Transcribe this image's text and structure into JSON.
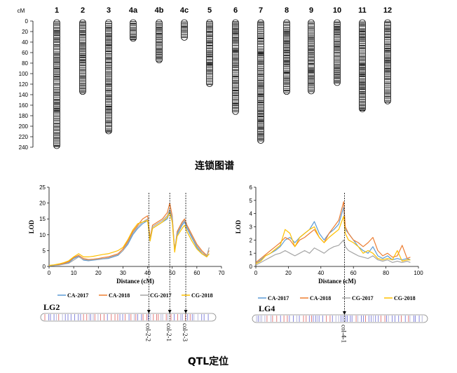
{
  "linkage_map": {
    "unit": "cM",
    "yticks": [
      0,
      20,
      40,
      60,
      80,
      100,
      120,
      140,
      160,
      180,
      200,
      220,
      240
    ],
    "chromosomes": [
      {
        "label": "1",
        "length": 240
      },
      {
        "label": "2",
        "length": 137
      },
      {
        "label": "3",
        "length": 212
      },
      {
        "label": "4a",
        "length": 36
      },
      {
        "label": "4b",
        "length": 77
      },
      {
        "label": "4c",
        "length": 34
      },
      {
        "label": "5",
        "length": 122
      },
      {
        "label": "6",
        "length": 175
      },
      {
        "label": "7",
        "length": 230
      },
      {
        "label": "8",
        "length": 137
      },
      {
        "label": "9",
        "length": 136
      },
      {
        "label": "10",
        "length": 120
      },
      {
        "label": "11",
        "length": 170
      },
      {
        "label": "12",
        "length": 155
      }
    ],
    "caption": "连锁图谱"
  },
  "series_styles": [
    {
      "name": "CA-2017",
      "color": "#5b9bd5"
    },
    {
      "name": "CA-2018",
      "color": "#ed7d31"
    },
    {
      "name": "CG-2017",
      "color": "#a5a5a5"
    },
    {
      "name": "CG-2018",
      "color": "#ffc000"
    }
  ],
  "chart_data": [
    {
      "type": "line",
      "xlabel": "Distance (cM)",
      "ylabel": "LOD",
      "xlim": [
        0,
        70
      ],
      "ylim": [
        0,
        25
      ],
      "xticks": [
        0,
        10,
        20,
        30,
        40,
        50,
        60,
        70
      ],
      "yticks": [
        0,
        5,
        10,
        15,
        20,
        25
      ],
      "legend": "bottom",
      "linkage_group": "LG2",
      "qtl": [
        {
          "name": "col-2-2",
          "pos": 40.5
        },
        {
          "name": "col-2-1",
          "pos": 49
        },
        {
          "name": "col-2-3",
          "pos": 55.5
        }
      ],
      "x": [
        0,
        2,
        4,
        6,
        8,
        10,
        12,
        14,
        16,
        18,
        20,
        22,
        24,
        26,
        28,
        30,
        32,
        34,
        36,
        38,
        40,
        41,
        42,
        44,
        46,
        48,
        49,
        50,
        51,
        52,
        54,
        55,
        56,
        58,
        60,
        62,
        64,
        65
      ],
      "series": [
        {
          "name": "CA-2017",
          "values": [
            0.2,
            0.3,
            0.5,
            0.8,
            1.2,
            2.5,
            3.2,
            2.0,
            1.8,
            2.0,
            2.2,
            2.4,
            2.5,
            3.0,
            3.5,
            5.0,
            7.0,
            10.0,
            12.0,
            13.5,
            14.5,
            8.0,
            12.0,
            13.0,
            14.0,
            15.0,
            17.5,
            15.0,
            5.0,
            10.0,
            13.0,
            14.0,
            12.0,
            9.0,
            6.0,
            4.0,
            3.0,
            4.0
          ]
        },
        {
          "name": "CA-2018",
          "values": [
            0.3,
            0.4,
            0.6,
            1.0,
            1.5,
            2.8,
            3.5,
            2.5,
            2.2,
            2.3,
            2.5,
            2.8,
            3.0,
            3.5,
            4.0,
            5.5,
            8.0,
            11.0,
            13.0,
            15.0,
            16.0,
            9.0,
            13.0,
            14.0,
            15.0,
            17.0,
            20.0,
            16.0,
            5.0,
            11.0,
            14.0,
            15.0,
            13.0,
            10.0,
            7.0,
            5.0,
            3.5,
            5.0
          ]
        },
        {
          "name": "CG-2017",
          "values": [
            0.2,
            0.3,
            0.4,
            0.7,
            1.0,
            2.0,
            3.0,
            2.2,
            2.0,
            2.1,
            2.3,
            2.5,
            2.7,
            3.2,
            3.7,
            5.0,
            7.5,
            10.5,
            12.5,
            14.0,
            15.0,
            8.5,
            12.5,
            13.5,
            14.5,
            16.0,
            18.0,
            15.5,
            5.0,
            10.5,
            13.5,
            14.5,
            12.5,
            9.5,
            6.5,
            4.5,
            3.2,
            6.0
          ]
        },
        {
          "name": "CG-2018",
          "values": [
            0.3,
            0.5,
            0.8,
            1.2,
            1.8,
            3.0,
            4.0,
            3.0,
            3.0,
            3.2,
            3.5,
            3.8,
            4.0,
            4.5,
            5.0,
            6.0,
            8.5,
            11.5,
            13.5,
            14.0,
            14.5,
            8.0,
            12.0,
            13.0,
            14.0,
            15.5,
            17.0,
            14.0,
            4.5,
            9.5,
            12.0,
            13.0,
            11.0,
            8.0,
            5.5,
            4.0,
            3.0,
            4.0
          ]
        }
      ]
    },
    {
      "type": "line",
      "xlabel": "Distance (cM)",
      "ylabel": "LOD",
      "xlim": [
        0,
        100
      ],
      "ylim": [
        0,
        6
      ],
      "xticks": [
        0,
        20,
        40,
        60,
        80,
        100
      ],
      "yticks": [
        0,
        1,
        2,
        3,
        4,
        5,
        6
      ],
      "legend": "bottom",
      "linkage_group": "LG4",
      "qtl": [
        {
          "name": "col-4-1",
          "pos": 54.5
        }
      ],
      "x": [
        0,
        3,
        6,
        9,
        12,
        15,
        18,
        21,
        24,
        27,
        30,
        33,
        36,
        39,
        42,
        45,
        48,
        51,
        54,
        55,
        57,
        60,
        63,
        66,
        69,
        72,
        75,
        78,
        81,
        84,
        87,
        90,
        93,
        95
      ],
      "series": [
        {
          "name": "CA-2017",
          "values": [
            0.2,
            0.5,
            0.8,
            1.0,
            1.2,
            1.5,
            2.0,
            2.2,
            1.8,
            2.2,
            2.5,
            2.8,
            3.4,
            2.5,
            2.0,
            2.5,
            2.8,
            3.2,
            4.5,
            2.8,
            2.5,
            2.0,
            1.5,
            1.2,
            1.0,
            1.5,
            0.8,
            0.6,
            0.8,
            0.5,
            0.6,
            0.5,
            0.6,
            0.5
          ]
        },
        {
          "name": "CA-2018",
          "values": [
            0.3,
            0.6,
            0.9,
            1.2,
            1.5,
            1.8,
            2.2,
            2.0,
            1.5,
            2.0,
            2.2,
            2.5,
            2.8,
            2.2,
            1.8,
            2.5,
            3.0,
            3.5,
            4.9,
            3.0,
            2.5,
            2.0,
            1.8,
            1.5,
            1.8,
            2.2,
            1.2,
            0.8,
            1.0,
            0.7,
            0.8,
            1.6,
            0.6,
            0.7
          ]
        },
        {
          "name": "CG-2017",
          "values": [
            0.1,
            0.3,
            0.5,
            0.7,
            0.9,
            1.0,
            1.2,
            1.0,
            0.8,
            1.0,
            1.2,
            1.0,
            1.4,
            1.2,
            1.0,
            1.3,
            1.5,
            1.6,
            2.0,
            1.5,
            1.2,
            1.0,
            0.8,
            0.7,
            0.6,
            0.8,
            0.5,
            0.4,
            0.5,
            0.3,
            0.4,
            0.3,
            0.4,
            0.3
          ]
        },
        {
          "name": "CG-2018",
          "values": [
            0.2,
            0.4,
            0.8,
            1.0,
            1.3,
            1.6,
            2.8,
            2.5,
            1.5,
            2.2,
            2.5,
            2.8,
            3.0,
            2.2,
            1.8,
            2.2,
            2.5,
            2.8,
            3.8,
            2.5,
            2.0,
            1.8,
            1.5,
            1.0,
            1.2,
            1.0,
            0.6,
            0.5,
            0.6,
            0.5,
            1.2,
            0.4,
            0.5,
            0.5
          ]
        }
      ]
    }
  ],
  "qtl_caption": "QTL定位"
}
